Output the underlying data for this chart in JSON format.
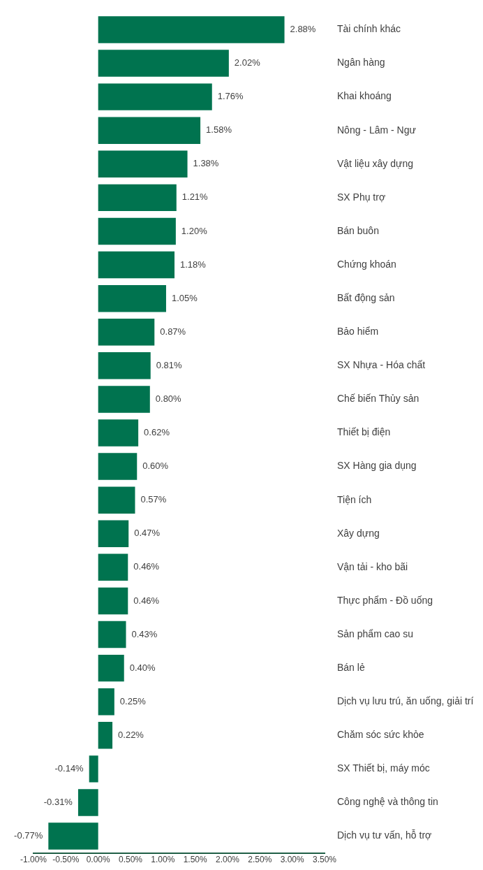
{
  "chart_data": {
    "type": "bar",
    "orientation": "horizontal",
    "color": "#00734f",
    "categories": [
      "Tài chính khác",
      "Ngân hàng",
      "Khai khoáng",
      "Nông - Lâm - Ngư",
      "Vật liệu xây dựng",
      "SX Phụ trợ",
      "Bán buôn",
      "Chứng khoán",
      "Bất động sản",
      "Bảo hiểm",
      "SX Nhựa - Hóa chất",
      "Chế biến Thủy sản",
      "Thiết bị điện",
      "SX Hàng gia dụng",
      "Tiện ích",
      "Xây dựng",
      "Vận tải - kho bãi",
      "Thực phẩm - Đồ uống",
      "Sản phẩm cao su",
      "Bán lẻ",
      "Dịch vụ lưu trú, ăn uống, giải trí",
      "Chăm sóc sức khỏe",
      "SX Thiết bị, máy móc",
      "Công nghệ và thông tin",
      "Dịch vụ tư vấn, hỗ trợ"
    ],
    "values": [
      2.88,
      2.02,
      1.76,
      1.58,
      1.38,
      1.21,
      1.2,
      1.18,
      1.05,
      0.87,
      0.81,
      0.8,
      0.62,
      0.6,
      0.57,
      0.47,
      0.46,
      0.46,
      0.43,
      0.4,
      0.25,
      0.22,
      -0.14,
      -0.31,
      -0.77
    ],
    "value_labels": [
      "2.88%",
      "2.02%",
      "1.76%",
      "1.58%",
      "1.38%",
      "1.21%",
      "1.20%",
      "1.18%",
      "1.05%",
      "0.87%",
      "0.81%",
      "0.80%",
      "0.62%",
      "0.60%",
      "0.57%",
      "0.47%",
      "0.46%",
      "0.46%",
      "0.43%",
      "0.40%",
      "0.25%",
      "0.22%",
      "-0.14%",
      "-0.31%",
      "-0.77%"
    ],
    "xlim": [
      -1,
      3.5
    ],
    "xticks": [
      {
        "value": -1,
        "label": "-1.00%"
      },
      {
        "value": -0.5,
        "label": "-0.50%"
      },
      {
        "value": 0,
        "label": "0.00%"
      },
      {
        "value": 0.5,
        "label": "0.50%"
      },
      {
        "value": 1,
        "label": "1.00%"
      },
      {
        "value": 1.5,
        "label": "1.50%"
      },
      {
        "value": 2,
        "label": "2.00%"
      },
      {
        "value": 2.5,
        "label": "2.50%"
      },
      {
        "value": 3,
        "label": "3.00%"
      },
      {
        "value": 3.5,
        "label": "3.50%"
      }
    ],
    "grid": false,
    "legend": false
  }
}
